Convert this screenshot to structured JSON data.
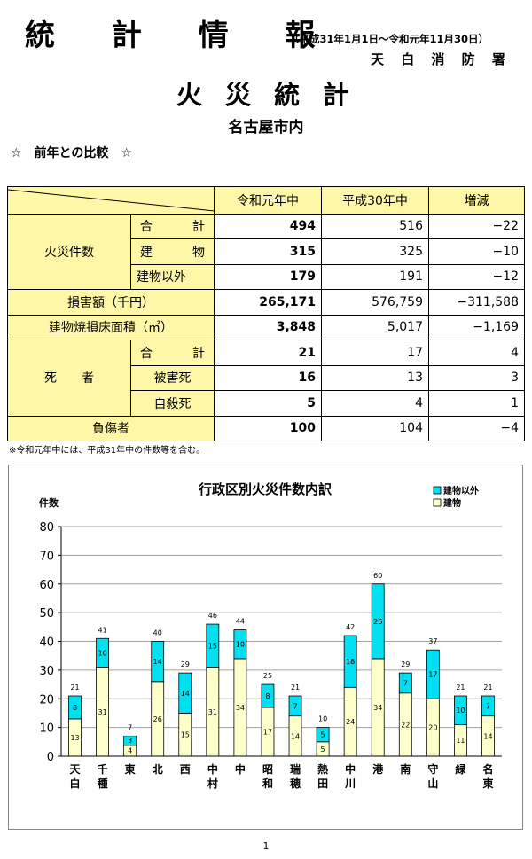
{
  "header": {
    "title": "統 計 情 報",
    "period": "（平成31年1月1日～令和元年11月30日）",
    "station": "天 白 消 防 署",
    "subtitle": "火 災 統 計",
    "area": "名古屋市内",
    "section": "☆　前年との比較　☆"
  },
  "table": {
    "columns": [
      "令和元年中",
      "平成30年中",
      "増減"
    ],
    "fires": {
      "label": "火災件数",
      "rows": [
        {
          "l1": "合",
          "l2": "計",
          "v": [
            "494",
            "516",
            "−22"
          ]
        },
        {
          "l1": "建",
          "l2": "物",
          "v": [
            "315",
            "325",
            "−10"
          ]
        },
        {
          "l1": "建物以外",
          "l2": "",
          "v": [
            "179",
            "191",
            "−12"
          ]
        }
      ]
    },
    "damage": {
      "label": "損害額（千円）",
      "v": [
        "265,171",
        "576,759",
        "−311,588"
      ]
    },
    "floor": {
      "label": "建物焼損床面積（㎡）",
      "v": [
        "3,848",
        "5,017",
        "−1,169"
      ]
    },
    "deaths": {
      "label": "死　　者",
      "rows": [
        {
          "l1": "合",
          "l2": "計",
          "v": [
            "21",
            "17",
            "4"
          ]
        },
        {
          "l1": "被害死",
          "l2": "",
          "v": [
            "16",
            "13",
            "3"
          ]
        },
        {
          "l1": "自殺死",
          "l2": "",
          "v": [
            "5",
            "4",
            "1"
          ]
        }
      ]
    },
    "injured": {
      "label": "負傷者",
      "v": [
        "100",
        "104",
        "−4"
      ]
    }
  },
  "note": "※令和元年中には、平成31年中の件数等を含む。",
  "page_number": "1",
  "chart_data": {
    "type": "bar",
    "stacked": true,
    "title": "行政区別火災件数内訳",
    "ylabel": "件数",
    "ylim": [
      0,
      80
    ],
    "yticks": [
      0,
      10,
      20,
      30,
      40,
      50,
      60,
      70,
      80
    ],
    "grid": true,
    "legend_position": "top-right",
    "categories": [
      [
        "天",
        "白"
      ],
      [
        "千",
        "種"
      ],
      [
        "東"
      ],
      [
        "北"
      ],
      [
        "西"
      ],
      [
        "中",
        "村"
      ],
      [
        "中"
      ],
      [
        "昭",
        "和"
      ],
      [
        "瑞",
        "穂"
      ],
      [
        "熱",
        "田"
      ],
      [
        "中",
        "川"
      ],
      [
        "港"
      ],
      [
        "南"
      ],
      [
        "守",
        "山"
      ],
      [
        "緑"
      ],
      [
        "名",
        "東"
      ]
    ],
    "series": [
      {
        "name": "建物",
        "color": "#ffffcc",
        "values": [
          13,
          31,
          4,
          26,
          15,
          31,
          34,
          17,
          14,
          5,
          24,
          34,
          22,
          20,
          11,
          14
        ]
      },
      {
        "name": "建物以外",
        "color": "#00e0f0",
        "values": [
          8,
          10,
          3,
          14,
          14,
          15,
          10,
          8,
          7,
          5,
          18,
          26,
          7,
          17,
          10,
          7
        ]
      }
    ],
    "totals": [
      21,
      41,
      7,
      40,
      29,
      46,
      44,
      25,
      21,
      10,
      42,
      60,
      29,
      37,
      21,
      21
    ]
  }
}
